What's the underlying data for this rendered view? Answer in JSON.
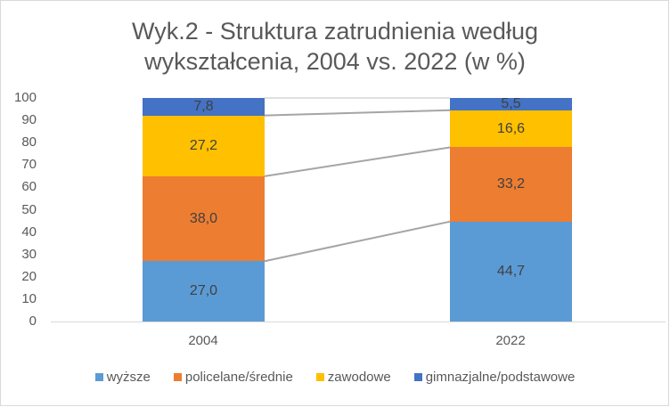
{
  "chart_data": {
    "type": "bar",
    "stacked": true,
    "title": "Wyk.2 - Struktura zatrudnienia według wykształcenia, 2004 vs. 2022 (w %)",
    "title_lines": [
      "Wyk.2 - Struktura zatrudnienia według",
      "wykształcenia, 2004 vs. 2022 (w %)"
    ],
    "xlabel": "",
    "ylabel": "",
    "ylim": [
      0,
      100
    ],
    "yticks": [
      "0",
      "10",
      "20",
      "30",
      "40",
      "50",
      "60",
      "70",
      "80",
      "90",
      "100"
    ],
    "categories": [
      "2004",
      "2022"
    ],
    "series": [
      {
        "name": "wyższe",
        "color": "#5b9bd5",
        "values": [
          27.0,
          44.7
        ],
        "labels": [
          "27,0",
          "44,7"
        ]
      },
      {
        "name": "policelane/średnie",
        "color": "#ed7d31",
        "values": [
          38.0,
          33.2
        ],
        "labels": [
          "38,0",
          "33,2"
        ]
      },
      {
        "name": "zawodowe",
        "color": "#ffc000",
        "values": [
          27.2,
          16.6
        ],
        "labels": [
          "27,2",
          "16,6"
        ]
      },
      {
        "name": "gimnazjalne/podstawowe",
        "color": "#4472c4",
        "values": [
          7.8,
          5.5
        ],
        "labels": [
          "7,8",
          "5,5"
        ]
      }
    ],
    "series_lines": true,
    "grid": false,
    "legend_position": "bottom"
  }
}
